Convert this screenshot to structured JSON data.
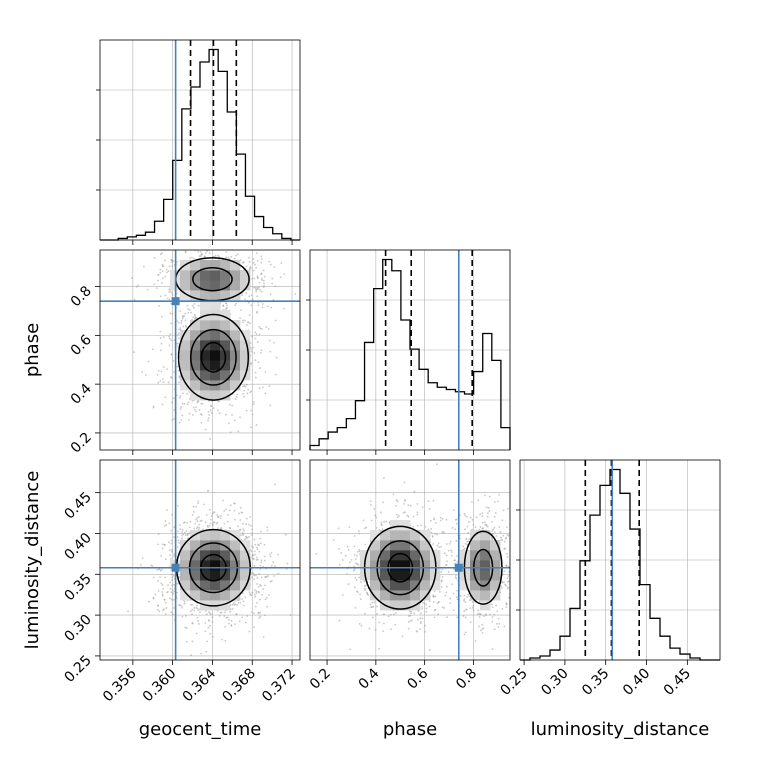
{
  "chart_data": {
    "type": "corner",
    "parameters": [
      "geocent_time",
      "phase",
      "luminosity_distance"
    ],
    "axis_labels": {
      "x": [
        "geocent_time",
        "phase",
        "luminosity_distance"
      ],
      "y": [
        "",
        "phase",
        "luminosity_distance"
      ]
    },
    "ranges": {
      "geocent_time": [
        0.3527,
        0.3728
      ],
      "phase": [
        0.13,
        0.95
      ],
      "luminosity_distance": [
        0.245,
        0.49
      ]
    },
    "ticks": {
      "geocent_time": [
        "0.356",
        "0.360",
        "0.364",
        "0.368",
        "0.372"
      ],
      "phase": [
        "0.2",
        "0.4",
        "0.6",
        "0.8"
      ],
      "luminosity_distance": [
        "0.25",
        "0.30",
        "0.35",
        "0.40",
        "0.45"
      ]
    },
    "truths": {
      "geocent_time": 0.3603,
      "phase": 0.74,
      "luminosity_distance": 0.358
    },
    "quantiles": {
      "geocent_time": [
        0.3618,
        0.3641,
        0.3664
      ],
      "phase": [
        0.44,
        0.545,
        0.795
      ],
      "luminosity_distance": [
        0.325,
        0.357,
        0.391
      ]
    },
    "histograms": {
      "geocent_time": {
        "range": [
          0.3527,
          0.3728
        ],
        "counts": [
          0,
          0,
          1,
          2,
          3,
          5,
          12,
          26,
          51,
          84,
          98,
          114,
          122,
          108,
          82,
          55,
          28,
          15,
          8,
          4,
          1,
          0
        ]
      },
      "phase": {
        "range": [
          0.13,
          0.95
        ],
        "counts": [
          2,
          5,
          8,
          10,
          14,
          22,
          48,
          72,
          85,
          80,
          58,
          45,
          36,
          30,
          28,
          27,
          26,
          25,
          35,
          52,
          40,
          10
        ]
      },
      "luminosity_distance": {
        "range": [
          0.245,
          0.49
        ],
        "counts": [
          0,
          1,
          2,
          5,
          12,
          26,
          50,
          73,
          88,
          96,
          84,
          66,
          38,
          21,
          12,
          6,
          3,
          1,
          0,
          0
        ]
      }
    },
    "density_modes": {
      "geocent_time_vs_phase": [
        {
          "x": 0.3641,
          "y": 0.51,
          "sx": 0.0018,
          "sy": 0.09,
          "weight": 1.0
        },
        {
          "x": 0.364,
          "y": 0.83,
          "sx": 0.0021,
          "sy": 0.05,
          "weight": 0.7
        }
      ],
      "geocent_time_vs_luminosity_distance": [
        {
          "x": 0.3641,
          "y": 0.358,
          "sx": 0.0019,
          "sy": 0.024,
          "weight": 1.0
        }
      ],
      "phase_vs_luminosity_distance": [
        {
          "x": 0.5,
          "y": 0.358,
          "sx": 0.075,
          "sy": 0.026,
          "weight": 1.0
        },
        {
          "x": 0.84,
          "y": 0.358,
          "sx": 0.045,
          "sy": 0.026,
          "weight": 0.65
        }
      ]
    },
    "colors": {
      "truth": "#4682b4",
      "line": "#000000",
      "grid": "#b0b0b0"
    },
    "grid": true
  }
}
